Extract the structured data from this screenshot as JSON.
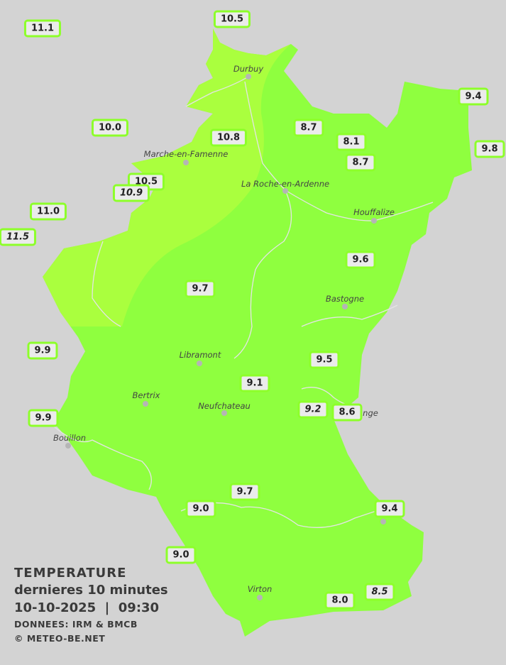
{
  "colors": {
    "background": "#d3d3d3",
    "zone_9_10": "#8fff3f",
    "zone_10_11": "#aaff3e",
    "station_border": "#8dff2a"
  },
  "legend": {
    "title": "TEMPERATURE",
    "subtitle": "dernieres 10 minutes",
    "datetime": "10-10-2025  |  09:30",
    "source": "DONNEES: IRM & BMCB",
    "copyright": "© METEO-BE.NET"
  },
  "cities": [
    "Durbuy",
    "Marche-en-Famenne",
    "La Roche-en-Ardenne",
    "Houffalize",
    "Bastogne",
    "Libramont",
    "Bertrix",
    "Neufchateau",
    "Bouillon",
    "nge",
    "Virton"
  ],
  "stations": [
    {
      "value": "11.1",
      "italic": false
    },
    {
      "value": "10.5",
      "italic": false
    },
    {
      "value": "9.4",
      "italic": false
    },
    {
      "value": "10.0",
      "italic": false
    },
    {
      "value": "10.8",
      "italic": false
    },
    {
      "value": "8.7",
      "italic": false
    },
    {
      "value": "8.1",
      "italic": false
    },
    {
      "value": "9.8",
      "italic": false
    },
    {
      "value": "8.7",
      "italic": false
    },
    {
      "value": "10.5",
      "italic": false
    },
    {
      "value": "10.9",
      "italic": true
    },
    {
      "value": "11.0",
      "italic": false
    },
    {
      "value": "11.5",
      "italic": true
    },
    {
      "value": "9.6",
      "italic": false
    },
    {
      "value": "9.7",
      "italic": false
    },
    {
      "value": "9.9",
      "italic": false
    },
    {
      "value": "9.5",
      "italic": false
    },
    {
      "value": "9.1",
      "italic": false
    },
    {
      "value": "9.9",
      "italic": false
    },
    {
      "value": "9.2",
      "italic": true
    },
    {
      "value": "8.6",
      "italic": false
    },
    {
      "value": "9.7",
      "italic": false
    },
    {
      "value": "9.0",
      "italic": false
    },
    {
      "value": "9.4",
      "italic": false
    },
    {
      "value": "9.0",
      "italic": false
    },
    {
      "value": "8.0",
      "italic": false
    },
    {
      "value": "8.5",
      "italic": true
    }
  ]
}
